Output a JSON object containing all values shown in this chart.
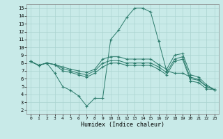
{
  "bg_color": "#c8eae8",
  "grid_color": "#aad4d0",
  "line_color": "#2a7a6a",
  "xlabel": "Humidex (Indice chaleur)",
  "xlim": [
    -0.5,
    23.5
  ],
  "ylim": [
    1.5,
    15.5
  ],
  "xticks": [
    0,
    1,
    2,
    3,
    4,
    5,
    6,
    7,
    8,
    9,
    10,
    11,
    12,
    13,
    14,
    15,
    16,
    17,
    18,
    19,
    20,
    21,
    22,
    23
  ],
  "yticks": [
    2,
    3,
    4,
    5,
    6,
    7,
    8,
    9,
    10,
    11,
    12,
    13,
    14,
    15
  ],
  "series": [
    [
      8.2,
      7.7,
      8.0,
      6.7,
      5.0,
      4.5,
      3.8,
      2.5,
      3.5,
      3.5,
      11.0,
      12.2,
      13.8,
      15.0,
      15.0,
      14.5,
      10.8,
      7.0,
      6.7,
      6.7,
      6.2,
      5.9,
      5.0,
      4.6
    ],
    [
      8.2,
      7.7,
      8.0,
      7.8,
      7.5,
      7.2,
      7.0,
      6.8,
      7.2,
      8.5,
      8.8,
      8.8,
      8.5,
      8.5,
      8.5,
      8.5,
      7.8,
      7.2,
      9.0,
      9.2,
      6.5,
      6.2,
      5.2,
      4.6
    ],
    [
      8.2,
      7.7,
      8.0,
      7.8,
      7.3,
      7.0,
      6.7,
      6.5,
      7.0,
      8.0,
      8.3,
      8.3,
      8.0,
      8.0,
      8.0,
      8.0,
      7.5,
      6.8,
      8.5,
      8.8,
      6.0,
      5.8,
      5.0,
      4.6
    ],
    [
      8.2,
      7.7,
      8.0,
      7.8,
      7.0,
      6.8,
      6.5,
      6.2,
      6.7,
      7.5,
      8.0,
      8.0,
      7.7,
      7.7,
      7.7,
      7.7,
      7.2,
      6.5,
      8.2,
      8.5,
      5.7,
      5.5,
      4.7,
      4.6
    ]
  ]
}
